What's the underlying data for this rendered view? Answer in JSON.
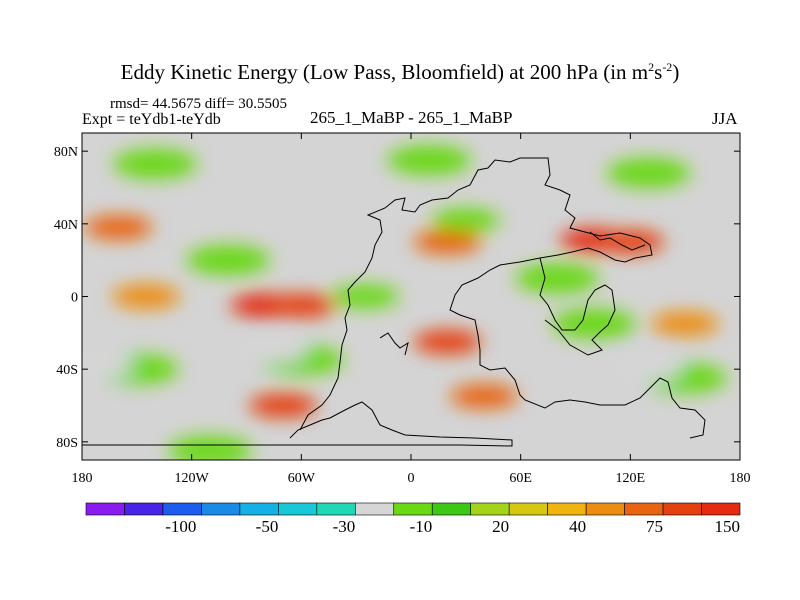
{
  "header": {
    "title_main": "Eddy Kinetic Energy (Low Pass, Bloomfield) at 200 hPa (in m",
    "title_sup1": "2",
    "title_mid": "s",
    "title_sup2": "-2",
    "title_end": ")",
    "stats": "rmsd= 44.5675 diff= 30.5505",
    "expt": "Expt = teYdb1-teYdb",
    "center_label": "265_1_MaBP - 265_1_MaBP",
    "season": "JJA"
  },
  "chart_data": {
    "type": "heatmap",
    "title": "Eddy Kinetic Energy (Low Pass, Bloomfield) at 200 hPa (in m^2 s^-2)",
    "x_axis": {
      "range": [
        -180,
        180
      ],
      "ticks": [
        -180,
        -120,
        -60,
        0,
        60,
        120,
        180
      ],
      "tick_labels": [
        "180",
        "120W",
        "60W",
        "0",
        "60E",
        "120E",
        "180"
      ]
    },
    "y_axis": {
      "range": [
        -90,
        90
      ],
      "ticks": [
        80,
        40,
        0,
        -40,
        -80
      ],
      "tick_labels": [
        "80N",
        "40N",
        "0",
        "40S",
        "80S"
      ]
    },
    "colorbar": {
      "colors": [
        "#8a1cf0",
        "#4a24e6",
        "#1c5cee",
        "#1a8ae6",
        "#14b0e6",
        "#18c8d8",
        "#20d8b4",
        "#d6d6d6",
        "#6ad814",
        "#3cc814",
        "#a4d418",
        "#d4c810",
        "#f0b410",
        "#ec8c10",
        "#e86410",
        "#e44010",
        "#e42a10"
      ],
      "boundaries": [
        -100,
        -50,
        -30,
        -10,
        20,
        40,
        75,
        150
      ],
      "boundary_labels": [
        "-100",
        "-50",
        "-30",
        "-10",
        "20",
        "40",
        "75",
        "150"
      ]
    },
    "field_regions": [
      {
        "lon": -160,
        "lat": 38,
        "value": 75
      },
      {
        "lon": -145,
        "lat": 0,
        "value": 60
      },
      {
        "lon": -80,
        "lat": -5,
        "value": 150
      },
      {
        "lon": -60,
        "lat": -5,
        "value": 120
      },
      {
        "lon": 20,
        "lat": 30,
        "value": 75
      },
      {
        "lon": 100,
        "lat": 31,
        "value": 150
      },
      {
        "lon": 120,
        "lat": 30,
        "value": 100
      },
      {
        "lon": 20,
        "lat": -25,
        "value": 100
      },
      {
        "lon": -70,
        "lat": -60,
        "value": 100
      },
      {
        "lon": 40,
        "lat": -55,
        "value": 75
      },
      {
        "lon": 150,
        "lat": -15,
        "value": 60
      },
      {
        "lon": -140,
        "lat": 73,
        "value": 0
      },
      {
        "lon": 10,
        "lat": 75,
        "value": 0
      },
      {
        "lon": 130,
        "lat": 68,
        "value": 0
      },
      {
        "lon": -100,
        "lat": 20,
        "value": 0
      },
      {
        "lon": -25,
        "lat": 0,
        "value": -5
      },
      {
        "lon": 80,
        "lat": 10,
        "value": 0
      },
      {
        "lon": 100,
        "lat": -15,
        "value": 0
      },
      {
        "lon": -150,
        "lat": -40,
        "value": 0
      },
      {
        "lon": -60,
        "lat": -35,
        "value": 0
      },
      {
        "lon": 150,
        "lat": -45,
        "value": 0
      },
      {
        "lon": 30,
        "lat": 42,
        "value": -10
      },
      {
        "lon": -170,
        "lat": -38,
        "value": -20
      },
      {
        "lon": -75,
        "lat": -30,
        "value": -15
      },
      {
        "lon": 130,
        "lat": -40,
        "value": -12
      },
      {
        "lon": -110,
        "lat": -85,
        "value": 0
      }
    ]
  }
}
